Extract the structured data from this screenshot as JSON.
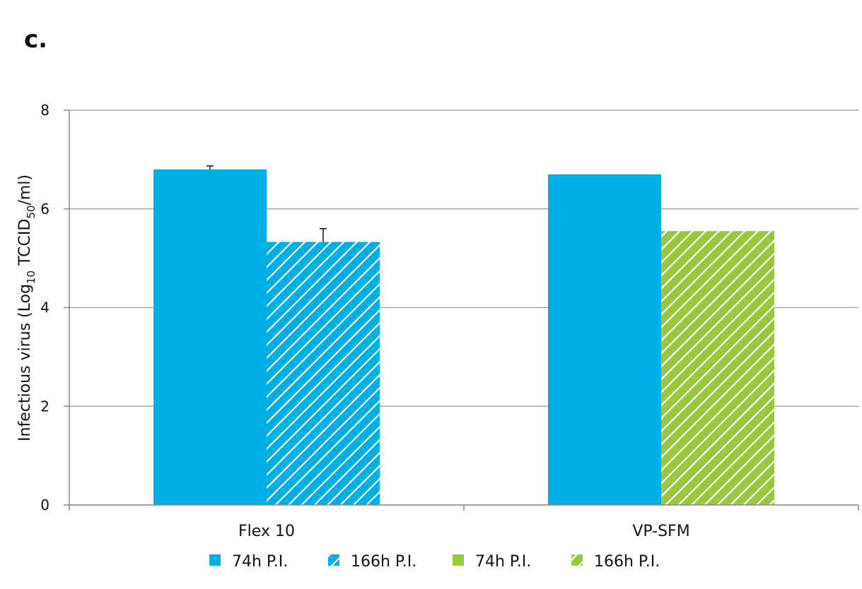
{
  "panel_label": "c.",
  "colors": {
    "blue": "#00aee6",
    "green": "#97c83e",
    "grid": "#a6a6a6",
    "axis": "#868686"
  },
  "chart_data": {
    "type": "bar",
    "categories": [
      "Flex 10",
      "VP-SFM"
    ],
    "title": "",
    "xlabel": "",
    "ylabel": {
      "prefix": "Infectious virus (Log",
      "sub1": "10",
      "mid": " TCCID",
      "sub2": "50",
      "suffix": "/ml)"
    },
    "ylim": [
      0,
      8
    ],
    "yticks": [
      0,
      2,
      4,
      6,
      8
    ],
    "grid": true,
    "legend_position": "bottom",
    "series": [
      {
        "name": "74h P.I.",
        "color": "#00aee6",
        "pattern": "solid",
        "values": [
          6.8,
          6.7
        ],
        "errors": [
          0.07,
          null
        ]
      },
      {
        "name": "166h P.I.",
        "color": "#00aee6",
        "pattern": "hatched",
        "values": [
          5.33,
          null
        ],
        "errors": [
          0.27,
          null
        ]
      },
      {
        "name": "74h P.I.",
        "color": "#97c83e",
        "pattern": "solid",
        "values": [
          null,
          6.7
        ],
        "errors": [
          null,
          null
        ]
      },
      {
        "name": "166h P.I.",
        "color": "#97c83e",
        "pattern": "hatched",
        "values": [
          null,
          5.55
        ],
        "errors": [
          null,
          null
        ]
      }
    ]
  }
}
